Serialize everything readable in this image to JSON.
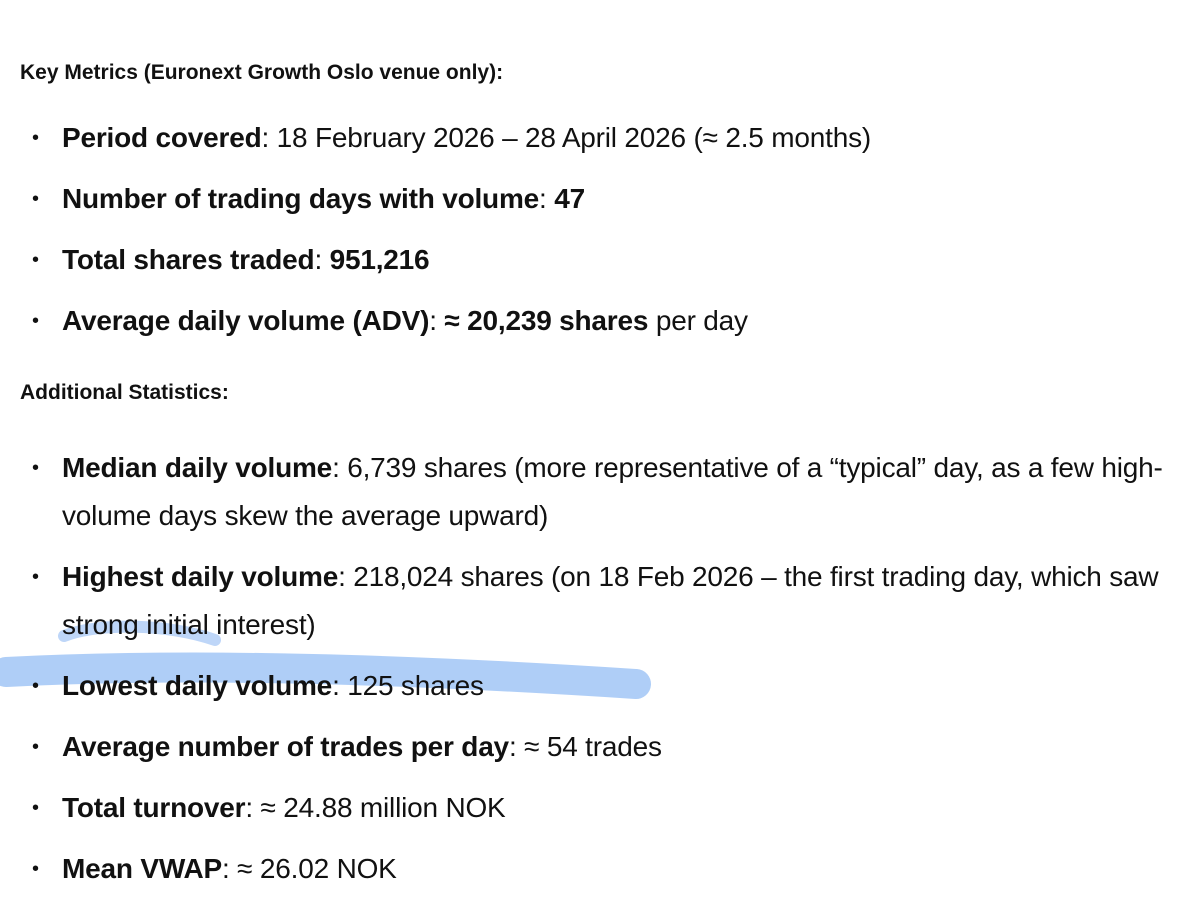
{
  "sections": [
    {
      "heading": "Key Metrics (Euronext Growth Oslo venue only):",
      "items": [
        {
          "parts": [
            {
              "text": "Period covered",
              "bold": true
            },
            {
              "text": ": 18 February 2026 – 28 April 2026 (≈ 2.5 months)",
              "bold": false
            }
          ]
        },
        {
          "parts": [
            {
              "text": "Number of trading days with volume",
              "bold": true
            },
            {
              "text": ": ",
              "bold": false
            },
            {
              "text": "47",
              "bold": true
            }
          ]
        },
        {
          "parts": [
            {
              "text": "Total shares traded",
              "bold": true
            },
            {
              "text": ": ",
              "bold": false
            },
            {
              "text": "951,216",
              "bold": true
            }
          ]
        },
        {
          "parts": [
            {
              "text": "Average daily volume (ADV)",
              "bold": true
            },
            {
              "text": ": ",
              "bold": false
            },
            {
              "text": "≈ 20,239 shares",
              "bold": true
            },
            {
              "text": " per day",
              "bold": false
            }
          ]
        }
      ]
    },
    {
      "heading": "Additional Statistics:",
      "items": [
        {
          "parts": [
            {
              "text": "Median daily volume",
              "bold": true
            },
            {
              "text": ": 6,739 shares (more representative of a “typical” day, as a few high-volume days skew the average upward)",
              "bold": false
            }
          ]
        },
        {
          "parts": [
            {
              "text": "Highest daily volume",
              "bold": true
            },
            {
              "text": ": 218,024 shares (on 18 Feb 2026 – the first trading day, which saw strong initial interest)",
              "bold": false
            }
          ]
        },
        {
          "parts": [
            {
              "text": "Lowest daily volume",
              "bold": true
            },
            {
              "text": ": 125 shares",
              "bold": false
            }
          ]
        },
        {
          "parts": [
            {
              "text": "Average number of trades per day",
              "bold": true
            },
            {
              "text": ": ≈ 54 trades",
              "bold": false
            }
          ]
        },
        {
          "parts": [
            {
              "text": "Total turnover",
              "bold": true
            },
            {
              "text": ": ≈ 24.88 million NOK",
              "bold": false
            }
          ]
        },
        {
          "parts": [
            {
              "text": "Mean VWAP",
              "bold": true
            },
            {
              "text": ": ≈ 26.02 NOK",
              "bold": false
            }
          ]
        }
      ]
    }
  ]
}
